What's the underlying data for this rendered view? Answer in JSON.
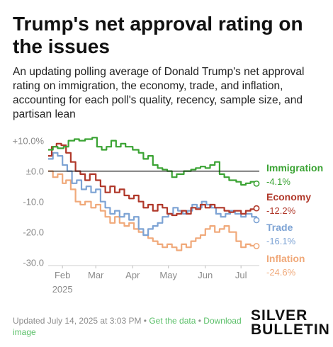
{
  "title": "Trump's net approval rating on the issues",
  "subtitle": "An updating polling average of Donald Trump's net approval rating on immigration, the economy, trade, and inflation, accounting for each poll's quality, recency, sample size, and partisan lean",
  "footer": {
    "updated": "Updated July 14, 2025 at 3:03 PM",
    "sep": "•",
    "get_data": "Get the data",
    "download": "Download image"
  },
  "brand": {
    "line1": "SILVER",
    "line2": "BULLETIN"
  },
  "chart_data": {
    "type": "line",
    "x_ticks": [
      "Feb",
      "Mar",
      "Apr",
      "May",
      "Jun",
      "Jul"
    ],
    "x_tick_dates": [
      "2025-02-01",
      "2025-03-01",
      "2025-04-01",
      "2025-05-01",
      "2025-06-01",
      "2025-07-01"
    ],
    "x_year_label": "2025",
    "xlim": [
      "2025-01-20",
      "2025-07-14"
    ],
    "y_ticks": [
      10,
      0,
      -10,
      -20,
      -30
    ],
    "y_tick_labels": [
      "+10.0%",
      "±0.0",
      "-10.0",
      "-20.0",
      "-30.0"
    ],
    "ylim": [
      -31,
      12
    ],
    "zero_line": true,
    "grid": false,
    "series": [
      {
        "name": "Immigration",
        "color": "#3aa333",
        "end_label": "-4.1%",
        "points": [
          [
            "2025-01-20",
            7
          ],
          [
            "2025-01-24",
            8
          ],
          [
            "2025-01-28",
            7.5
          ],
          [
            "2025-02-02",
            8
          ],
          [
            "2025-02-06",
            10
          ],
          [
            "2025-02-11",
            10.5
          ],
          [
            "2025-02-15",
            10
          ],
          [
            "2025-02-20",
            10.5
          ],
          [
            "2025-02-26",
            11
          ],
          [
            "2025-03-02",
            8
          ],
          [
            "2025-03-06",
            7
          ],
          [
            "2025-03-10",
            8
          ],
          [
            "2025-03-14",
            10
          ],
          [
            "2025-03-18",
            8
          ],
          [
            "2025-03-22",
            9
          ],
          [
            "2025-03-26",
            8
          ],
          [
            "2025-04-01",
            7
          ],
          [
            "2025-04-06",
            6
          ],
          [
            "2025-04-10",
            4
          ],
          [
            "2025-04-14",
            5
          ],
          [
            "2025-04-18",
            2
          ],
          [
            "2025-04-22",
            1
          ],
          [
            "2025-04-26",
            0.5
          ],
          [
            "2025-04-30",
            0
          ],
          [
            "2025-05-04",
            -2
          ],
          [
            "2025-05-08",
            -1
          ],
          [
            "2025-05-14",
            0
          ],
          [
            "2025-05-20",
            0.5
          ],
          [
            "2025-05-24",
            1
          ],
          [
            "2025-05-28",
            1.5
          ],
          [
            "2025-06-01",
            1
          ],
          [
            "2025-06-05",
            2
          ],
          [
            "2025-06-09",
            3
          ],
          [
            "2025-06-13",
            -1
          ],
          [
            "2025-06-17",
            -2
          ],
          [
            "2025-06-21",
            -3
          ],
          [
            "2025-06-27",
            -3.5
          ],
          [
            "2025-07-01",
            -4.5
          ],
          [
            "2025-07-05",
            -4
          ],
          [
            "2025-07-09",
            -3.5
          ],
          [
            "2025-07-14",
            -4.1
          ]
        ]
      },
      {
        "name": "Economy",
        "color": "#b0382a",
        "end_label": "-12.2%",
        "points": [
          [
            "2025-01-20",
            5
          ],
          [
            "2025-01-23",
            8
          ],
          [
            "2025-01-27",
            9
          ],
          [
            "2025-01-31",
            8.5
          ],
          [
            "2025-02-04",
            6
          ],
          [
            "2025-02-08",
            3
          ],
          [
            "2025-02-12",
            0
          ],
          [
            "2025-02-16",
            -1
          ],
          [
            "2025-02-20",
            -3
          ],
          [
            "2025-02-24",
            -1
          ],
          [
            "2025-03-01",
            -3
          ],
          [
            "2025-03-05",
            -5
          ],
          [
            "2025-03-09",
            -7
          ],
          [
            "2025-03-13",
            -5
          ],
          [
            "2025-03-17",
            -7
          ],
          [
            "2025-03-21",
            -6
          ],
          [
            "2025-03-25",
            -8
          ],
          [
            "2025-03-29",
            -9
          ],
          [
            "2025-04-02",
            -8
          ],
          [
            "2025-04-06",
            -10
          ],
          [
            "2025-04-10",
            -12
          ],
          [
            "2025-04-14",
            -11
          ],
          [
            "2025-04-18",
            -13
          ],
          [
            "2025-04-22",
            -11
          ],
          [
            "2025-04-26",
            -12
          ],
          [
            "2025-04-30",
            -14
          ],
          [
            "2025-05-04",
            -14.5
          ],
          [
            "2025-05-08",
            -14
          ],
          [
            "2025-05-12",
            -13
          ],
          [
            "2025-05-16",
            -14
          ],
          [
            "2025-05-20",
            -12
          ],
          [
            "2025-05-24",
            -12.5
          ],
          [
            "2025-05-28",
            -11
          ],
          [
            "2025-06-01",
            -12
          ],
          [
            "2025-06-05",
            -11
          ],
          [
            "2025-06-09",
            -12
          ],
          [
            "2025-06-13",
            -12
          ],
          [
            "2025-06-17",
            -13
          ],
          [
            "2025-06-21",
            -13.5
          ],
          [
            "2025-06-25",
            -13
          ],
          [
            "2025-07-01",
            -14
          ],
          [
            "2025-07-05",
            -13
          ],
          [
            "2025-07-09",
            -12.5
          ],
          [
            "2025-07-14",
            -12.2
          ]
        ]
      },
      {
        "name": "Trade",
        "color": "#7da3d4",
        "end_label": "-16.1%",
        "points": [
          [
            "2025-01-20",
            4
          ],
          [
            "2025-01-24",
            6
          ],
          [
            "2025-01-28",
            5
          ],
          [
            "2025-02-01",
            2
          ],
          [
            "2025-02-05",
            0
          ],
          [
            "2025-02-09",
            -4
          ],
          [
            "2025-02-13",
            -3
          ],
          [
            "2025-02-17",
            -6
          ],
          [
            "2025-02-21",
            -5
          ],
          [
            "2025-02-25",
            -7
          ],
          [
            "2025-03-01",
            -6
          ],
          [
            "2025-03-05",
            -10
          ],
          [
            "2025-03-09",
            -12
          ],
          [
            "2025-03-13",
            -14
          ],
          [
            "2025-03-17",
            -13
          ],
          [
            "2025-03-21",
            -15
          ],
          [
            "2025-03-25",
            -14
          ],
          [
            "2025-03-29",
            -16
          ],
          [
            "2025-04-02",
            -15
          ],
          [
            "2025-04-06",
            -19
          ],
          [
            "2025-04-10",
            -21
          ],
          [
            "2025-04-14",
            -19
          ],
          [
            "2025-04-18",
            -18
          ],
          [
            "2025-04-22",
            -17
          ],
          [
            "2025-04-26",
            -15
          ],
          [
            "2025-05-01",
            -14
          ],
          [
            "2025-05-05",
            -12
          ],
          [
            "2025-05-09",
            -13
          ],
          [
            "2025-05-13",
            -14
          ],
          [
            "2025-05-17",
            -13
          ],
          [
            "2025-05-21",
            -11
          ],
          [
            "2025-05-25",
            -12
          ],
          [
            "2025-05-29",
            -10
          ],
          [
            "2025-06-02",
            -11
          ],
          [
            "2025-06-06",
            -12
          ],
          [
            "2025-06-10",
            -14
          ],
          [
            "2025-06-14",
            -15
          ],
          [
            "2025-06-18",
            -14
          ],
          [
            "2025-06-22",
            -13
          ],
          [
            "2025-06-26",
            -14
          ],
          [
            "2025-07-01",
            -15
          ],
          [
            "2025-07-05",
            -14
          ],
          [
            "2025-07-10",
            -15
          ],
          [
            "2025-07-14",
            -16.1
          ]
        ]
      },
      {
        "name": "Inflation",
        "color": "#f0a97a",
        "end_label": "-24.6%",
        "points": [
          [
            "2025-01-20",
            0
          ],
          [
            "2025-01-24",
            -2
          ],
          [
            "2025-01-28",
            -1
          ],
          [
            "2025-02-01",
            -4
          ],
          [
            "2025-02-04",
            -3
          ],
          [
            "2025-02-08",
            -6
          ],
          [
            "2025-02-12",
            -10
          ],
          [
            "2025-02-16",
            -11
          ],
          [
            "2025-02-20",
            -10
          ],
          [
            "2025-02-25",
            -12
          ],
          [
            "2025-03-01",
            -11
          ],
          [
            "2025-03-05",
            -13
          ],
          [
            "2025-03-09",
            -15
          ],
          [
            "2025-03-13",
            -17
          ],
          [
            "2025-03-17",
            -15
          ],
          [
            "2025-03-21",
            -17
          ],
          [
            "2025-03-25",
            -18
          ],
          [
            "2025-03-29",
            -17
          ],
          [
            "2025-04-02",
            -19
          ],
          [
            "2025-04-06",
            -20
          ],
          [
            "2025-04-10",
            -21
          ],
          [
            "2025-04-14",
            -22
          ],
          [
            "2025-04-18",
            -23
          ],
          [
            "2025-04-22",
            -24
          ],
          [
            "2025-04-26",
            -25
          ],
          [
            "2025-04-30",
            -24
          ],
          [
            "2025-05-04",
            -25
          ],
          [
            "2025-05-08",
            -26
          ],
          [
            "2025-05-12",
            -24
          ],
          [
            "2025-05-16",
            -25
          ],
          [
            "2025-05-20",
            -23
          ],
          [
            "2025-05-24",
            -22
          ],
          [
            "2025-05-28",
            -21
          ],
          [
            "2025-06-01",
            -19
          ],
          [
            "2025-06-05",
            -18
          ],
          [
            "2025-06-09",
            -20
          ],
          [
            "2025-06-13",
            -19
          ],
          [
            "2025-06-17",
            -18
          ],
          [
            "2025-06-21",
            -20
          ],
          [
            "2025-06-27",
            -23
          ],
          [
            "2025-07-01",
            -25
          ],
          [
            "2025-07-05",
            -24
          ],
          [
            "2025-07-09",
            -24.5
          ],
          [
            "2025-07-14",
            -24.6
          ]
        ]
      }
    ]
  }
}
